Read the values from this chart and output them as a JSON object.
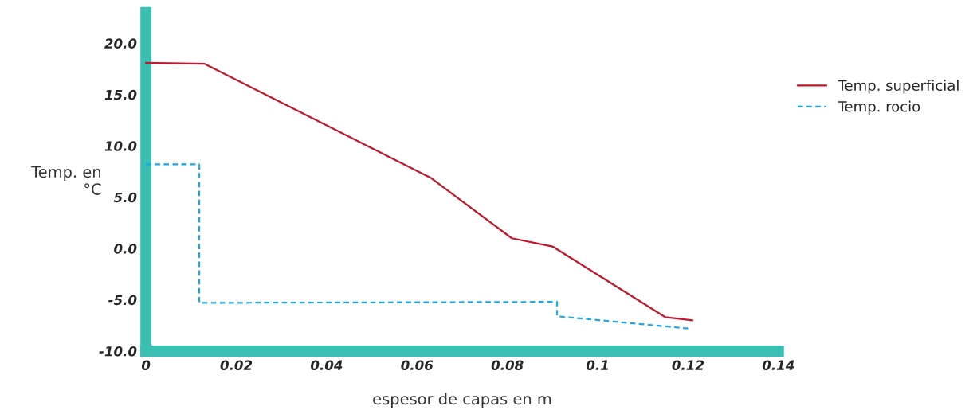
{
  "chart_data": {
    "type": "line",
    "xlabel": "espesor de capas en m",
    "ylabel": "Temp. en\n°C",
    "xlim": [
      0,
      0.14
    ],
    "xticks": [
      0,
      0.02,
      0.04,
      0.06,
      0.08,
      0.1,
      0.12,
      0.14
    ],
    "ylim": [
      -10,
      23
    ],
    "yticks": [
      {
        "value": -10,
        "label": "-10.0"
      },
      {
        "value": -5,
        "label": "-5.0"
      },
      {
        "value": 0,
        "label": "0.0"
      },
      {
        "value": 5,
        "label": "5.0"
      },
      {
        "value": 10,
        "label": "10.0"
      },
      {
        "value": 15,
        "label": "15.0"
      },
      {
        "value": 20,
        "label": "20.0"
      }
    ],
    "grid": false,
    "legend": "right",
    "series": [
      {
        "name": "Temp. superficial",
        "color": "#c0182b",
        "line_style": "solid",
        "x": [
          0,
          0.013,
          0.063,
          0.081,
          0.09,
          0.115,
          0.121
        ],
        "values": [
          18.1,
          18.0,
          6.9,
          1.0,
          0.2,
          -6.7,
          -7.0
        ]
      },
      {
        "name": "Temp. rocio",
        "color": "#1aa7e6",
        "line_style": "dashed",
        "x": [
          0,
          0.0118,
          0.0118,
          0.091,
          0.091,
          0.12
        ],
        "values": [
          8.2,
          8.2,
          -5.3,
          -5.2,
          -6.6,
          -7.8
        ]
      }
    ]
  }
}
